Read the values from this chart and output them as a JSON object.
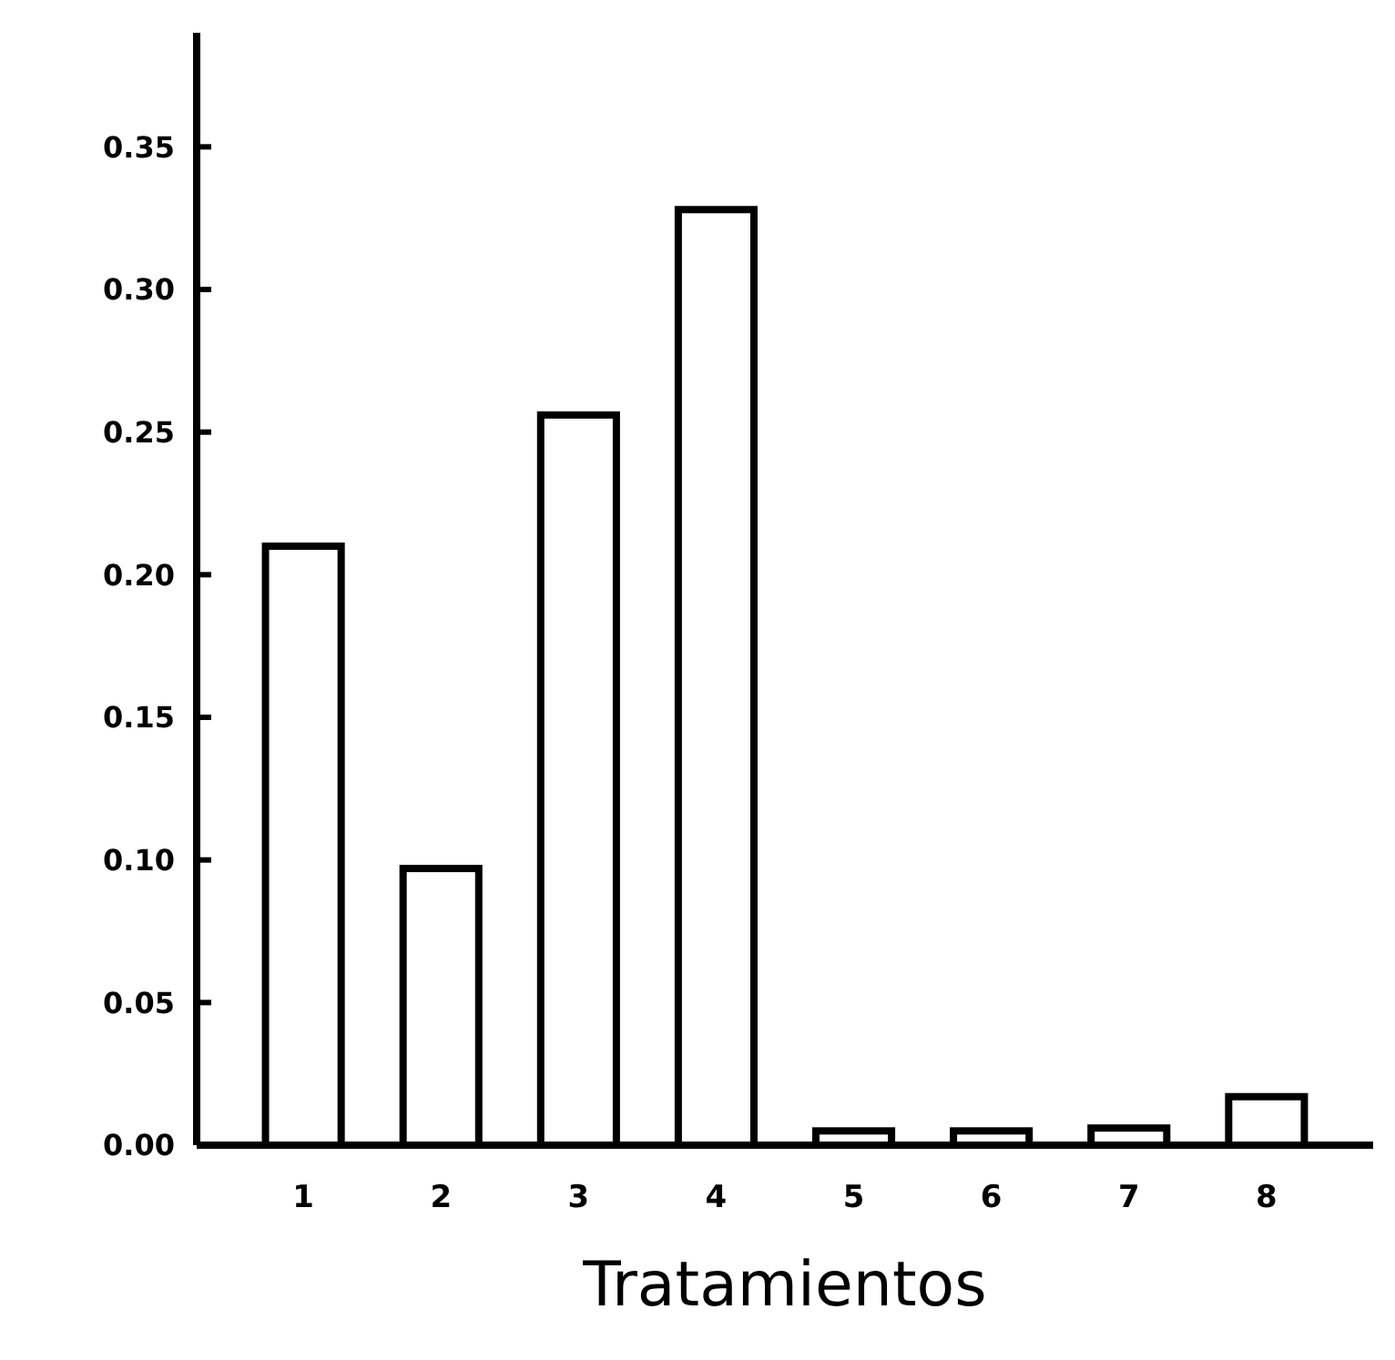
{
  "chart_data": {
    "type": "bar",
    "xlabel": "Tratamientos",
    "categories": [
      "1",
      "2",
      "3",
      "4",
      "5",
      "6",
      "7",
      "8"
    ],
    "values": [
      0.21,
      0.097,
      0.256,
      0.328,
      0.005,
      0.005,
      0.006,
      0.017
    ],
    "color": "#ffffff",
    "ylim": [
      0,
      0.39
    ],
    "yticks": [
      {
        "value": 0,
        "label": "0.00"
      },
      {
        "value": 0.05,
        "label": "0.05"
      },
      {
        "value": 0.1,
        "label": "0.10"
      },
      {
        "value": 0.15,
        "label": "0.15"
      },
      {
        "value": 0.2,
        "label": "0.20"
      },
      {
        "value": 0.25,
        "label": "0.25"
      },
      {
        "value": 0.3,
        "label": "0.30"
      },
      {
        "value": 0.35,
        "label": "0.35"
      }
    ],
    "grid": false
  }
}
